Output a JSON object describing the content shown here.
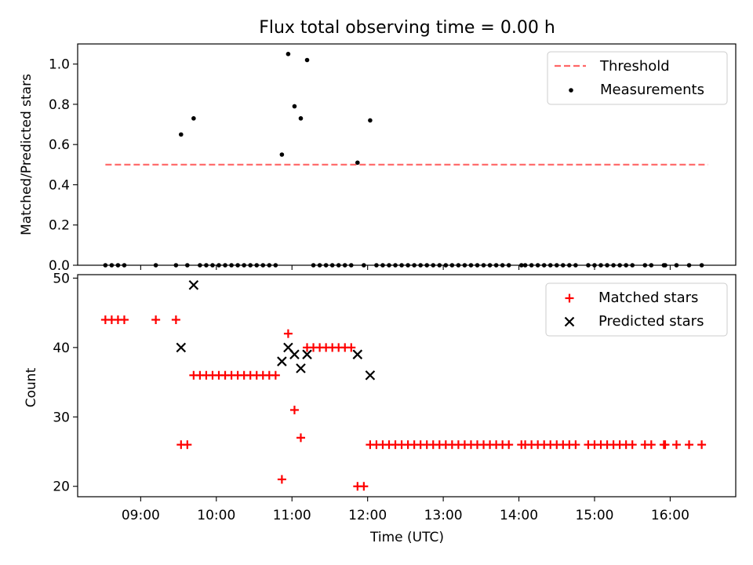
{
  "title": "Flux total observing time = 0.00 h",
  "colors": {
    "threshold": "#ff6666",
    "measurement": "#000000",
    "matched": "#ff0000",
    "predicted": "#000000"
  },
  "chart_data": [
    {
      "type": "scatter",
      "ylabel": "Matched/Predicted stars",
      "xlabel": "",
      "ylim": [
        0,
        1.1
      ],
      "yticks": [
        0.0,
        0.2,
        0.4,
        0.6,
        0.8,
        1.0
      ],
      "ytick_labels": [
        "0.0",
        "0.2",
        "0.4",
        "0.6",
        "0.8",
        "1.0"
      ],
      "legend_position": "top-right",
      "threshold": {
        "name": "Threshold",
        "value": 0.5,
        "x_start": "08:32",
        "x_end": "16:30",
        "style": "dashed"
      },
      "series": [
        {
          "name": "Measurements",
          "marker": "dot",
          "points": [
            [
              "08:32",
              0.0
            ],
            [
              "08:37",
              0.0
            ],
            [
              "08:42",
              0.0
            ],
            [
              "08:47",
              0.0
            ],
            [
              "09:12",
              0.0
            ],
            [
              "09:28",
              0.0
            ],
            [
              "09:32",
              0.65
            ],
            [
              "09:37",
              0.0
            ],
            [
              "09:42",
              0.73
            ],
            [
              "09:47",
              0.0
            ],
            [
              "09:52",
              0.0
            ],
            [
              "09:57",
              0.0
            ],
            [
              "10:02",
              0.0
            ],
            [
              "10:07",
              0.0
            ],
            [
              "10:12",
              0.0
            ],
            [
              "10:17",
              0.0
            ],
            [
              "10:22",
              0.0
            ],
            [
              "10:27",
              0.0
            ],
            [
              "10:32",
              0.0
            ],
            [
              "10:37",
              0.0
            ],
            [
              "10:42",
              0.0
            ],
            [
              "10:47",
              0.0
            ],
            [
              "10:52",
              0.55
            ],
            [
              "10:57",
              1.05
            ],
            [
              "11:02",
              0.79
            ],
            [
              "11:07",
              0.73
            ],
            [
              "11:12",
              1.02
            ],
            [
              "11:17",
              0.0
            ],
            [
              "11:22",
              0.0
            ],
            [
              "11:27",
              0.0
            ],
            [
              "11:32",
              0.0
            ],
            [
              "11:37",
              0.0
            ],
            [
              "11:42",
              0.0
            ],
            [
              "11:47",
              0.0
            ],
            [
              "11:52",
              0.51
            ],
            [
              "11:57",
              0.0
            ],
            [
              "12:02",
              0.72
            ],
            [
              "12:07",
              0.0
            ],
            [
              "12:12",
              0.0
            ],
            [
              "12:17",
              0.0
            ],
            [
              "12:22",
              0.0
            ],
            [
              "12:27",
              0.0
            ],
            [
              "12:32",
              0.0
            ],
            [
              "12:37",
              0.0
            ],
            [
              "12:42",
              0.0
            ],
            [
              "12:47",
              0.0
            ],
            [
              "12:52",
              0.0
            ],
            [
              "12:57",
              0.0
            ],
            [
              "13:02",
              0.0
            ],
            [
              "13:07",
              0.0
            ],
            [
              "13:12",
              0.0
            ],
            [
              "13:17",
              0.0
            ],
            [
              "13:22",
              0.0
            ],
            [
              "13:27",
              0.0
            ],
            [
              "13:32",
              0.0
            ],
            [
              "13:37",
              0.0
            ],
            [
              "13:42",
              0.0
            ],
            [
              "13:47",
              0.0
            ],
            [
              "13:52",
              0.0
            ],
            [
              "14:02",
              0.0
            ],
            [
              "14:05",
              0.0
            ],
            [
              "14:10",
              0.0
            ],
            [
              "14:15",
              0.0
            ],
            [
              "14:20",
              0.0
            ],
            [
              "14:25",
              0.0
            ],
            [
              "14:30",
              0.0
            ],
            [
              "14:35",
              0.0
            ],
            [
              "14:40",
              0.0
            ],
            [
              "14:45",
              0.0
            ],
            [
              "14:55",
              0.0
            ],
            [
              "15:00",
              0.0
            ],
            [
              "15:05",
              0.0
            ],
            [
              "15:10",
              0.0
            ],
            [
              "15:15",
              0.0
            ],
            [
              "15:20",
              0.0
            ],
            [
              "15:25",
              0.0
            ],
            [
              "15:30",
              0.0
            ],
            [
              "15:40",
              0.0
            ],
            [
              "15:45",
              0.0
            ],
            [
              "15:55",
              0.0
            ],
            [
              "15:56",
              0.0
            ],
            [
              "16:05",
              0.0
            ],
            [
              "16:15",
              0.0
            ],
            [
              "16:25",
              0.0
            ]
          ]
        }
      ]
    },
    {
      "type": "scatter",
      "ylabel": "Count",
      "xlabel": "Time (UTC)",
      "ylim": [
        18.5,
        50.5
      ],
      "yticks": [
        20,
        30,
        40,
        50
      ],
      "ytick_labels": [
        "20",
        "30",
        "40",
        "50"
      ],
      "xlim": [
        "08:10",
        "16:52"
      ],
      "xticks": [
        "09:00",
        "10:00",
        "11:00",
        "12:00",
        "13:00",
        "14:00",
        "15:00",
        "16:00"
      ],
      "xtick_labels": [
        "09:00",
        "10:00",
        "11:00",
        "12:00",
        "13:00",
        "14:00",
        "15:00",
        "16:00"
      ],
      "legend_position": "top-right",
      "series": [
        {
          "name": "Matched stars",
          "marker": "plus",
          "points": [
            [
              "08:32",
              44
            ],
            [
              "08:37",
              44
            ],
            [
              "08:42",
              44
            ],
            [
              "08:47",
              44
            ],
            [
              "09:12",
              44
            ],
            [
              "09:28",
              44
            ],
            [
              "09:32",
              26
            ],
            [
              "09:37",
              26
            ],
            [
              "09:42",
              36
            ],
            [
              "09:47",
              36
            ],
            [
              "09:52",
              36
            ],
            [
              "09:57",
              36
            ],
            [
              "10:02",
              36
            ],
            [
              "10:07",
              36
            ],
            [
              "10:12",
              36
            ],
            [
              "10:17",
              36
            ],
            [
              "10:22",
              36
            ],
            [
              "10:27",
              36
            ],
            [
              "10:32",
              36
            ],
            [
              "10:37",
              36
            ],
            [
              "10:42",
              36
            ],
            [
              "10:47",
              36
            ],
            [
              "10:52",
              21
            ],
            [
              "10:57",
              42
            ],
            [
              "11:02",
              31
            ],
            [
              "11:07",
              27
            ],
            [
              "11:12",
              40
            ],
            [
              "11:17",
              40
            ],
            [
              "11:22",
              40
            ],
            [
              "11:27",
              40
            ],
            [
              "11:32",
              40
            ],
            [
              "11:37",
              40
            ],
            [
              "11:42",
              40
            ],
            [
              "11:47",
              40
            ],
            [
              "11:52",
              20
            ],
            [
              "11:57",
              20
            ],
            [
              "12:02",
              26
            ],
            [
              "12:07",
              26
            ],
            [
              "12:12",
              26
            ],
            [
              "12:17",
              26
            ],
            [
              "12:22",
              26
            ],
            [
              "12:27",
              26
            ],
            [
              "12:32",
              26
            ],
            [
              "12:37",
              26
            ],
            [
              "12:42",
              26
            ],
            [
              "12:47",
              26
            ],
            [
              "12:52",
              26
            ],
            [
              "12:57",
              26
            ],
            [
              "13:02",
              26
            ],
            [
              "13:07",
              26
            ],
            [
              "13:12",
              26
            ],
            [
              "13:17",
              26
            ],
            [
              "13:22",
              26
            ],
            [
              "13:27",
              26
            ],
            [
              "13:32",
              26
            ],
            [
              "13:37",
              26
            ],
            [
              "13:42",
              26
            ],
            [
              "13:47",
              26
            ],
            [
              "13:52",
              26
            ],
            [
              "14:02",
              26
            ],
            [
              "14:05",
              26
            ],
            [
              "14:10",
              26
            ],
            [
              "14:15",
              26
            ],
            [
              "14:20",
              26
            ],
            [
              "14:25",
              26
            ],
            [
              "14:30",
              26
            ],
            [
              "14:35",
              26
            ],
            [
              "14:40",
              26
            ],
            [
              "14:45",
              26
            ],
            [
              "14:55",
              26
            ],
            [
              "15:00",
              26
            ],
            [
              "15:05",
              26
            ],
            [
              "15:10",
              26
            ],
            [
              "15:15",
              26
            ],
            [
              "15:20",
              26
            ],
            [
              "15:25",
              26
            ],
            [
              "15:30",
              26
            ],
            [
              "15:40",
              26
            ],
            [
              "15:45",
              26
            ],
            [
              "15:55",
              26
            ],
            [
              "15:56",
              26
            ],
            [
              "16:05",
              26
            ],
            [
              "16:15",
              26
            ],
            [
              "16:25",
              26
            ]
          ]
        },
        {
          "name": "Predicted stars",
          "marker": "x",
          "points": [
            [
              "09:32",
              40
            ],
            [
              "09:42",
              49
            ],
            [
              "10:52",
              38
            ],
            [
              "10:57",
              40
            ],
            [
              "11:02",
              39
            ],
            [
              "11:07",
              37
            ],
            [
              "11:12",
              39
            ],
            [
              "11:52",
              39
            ],
            [
              "12:02",
              36
            ]
          ]
        }
      ]
    }
  ]
}
